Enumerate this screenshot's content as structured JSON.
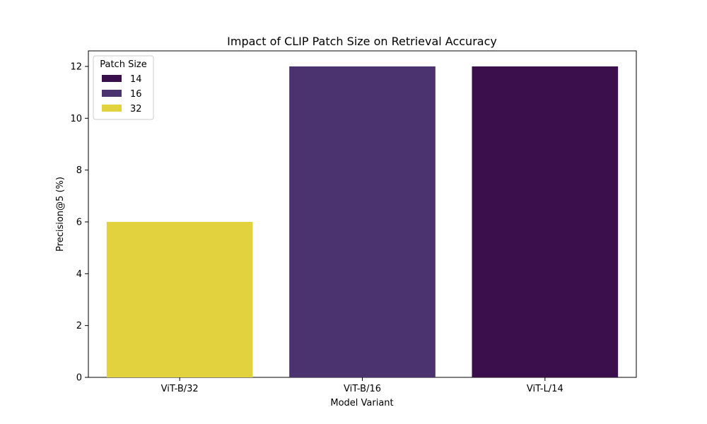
{
  "chart_data": {
    "type": "bar",
    "title": "Impact of CLIP Patch Size on Retrieval Accuracy",
    "xlabel": "Model Variant",
    "ylabel": "Precision@5 (%)",
    "categories": [
      "ViT-B/32",
      "ViT-B/16",
      "ViT-L/14"
    ],
    "values": [
      6,
      12,
      12
    ],
    "hue": [
      32,
      16,
      14
    ],
    "ylim": [
      0,
      12.6
    ],
    "yticks": [
      0,
      2,
      4,
      6,
      8,
      10,
      12
    ],
    "grid": false,
    "legend": {
      "title": "Patch Size",
      "placement": "top-left",
      "entries": [
        {
          "label": "14",
          "color": "#3b0f4c"
        },
        {
          "label": "16",
          "color": "#4a336e"
        },
        {
          "label": "32",
          "color": "#e2d33e"
        }
      ]
    },
    "colors": {
      "14": "#3b0f4c",
      "16": "#4a336e",
      "32": "#e2d33e"
    }
  }
}
